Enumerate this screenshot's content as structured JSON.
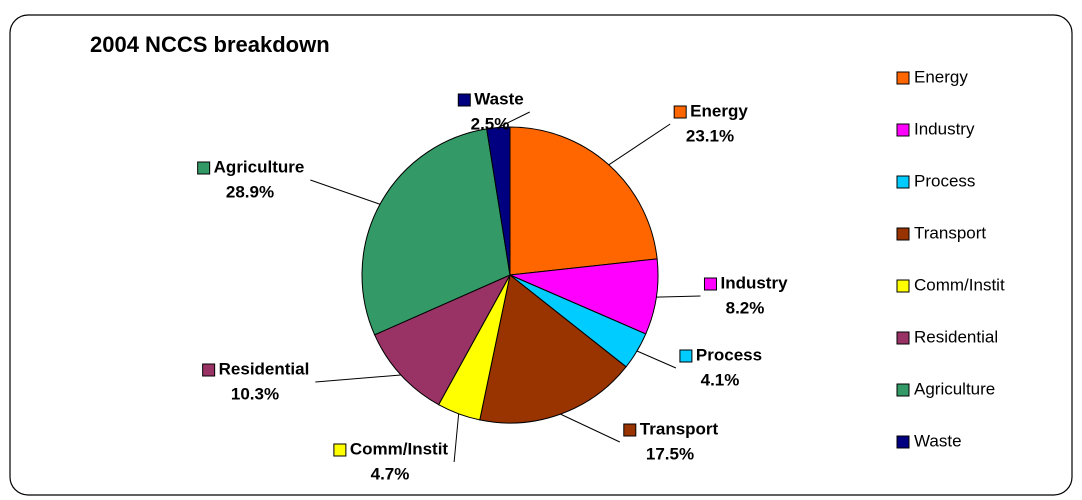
{
  "chart_data": {
    "type": "pie",
    "title": "2004 NCCS breakdown",
    "categories": [
      "Energy",
      "Industry",
      "Process",
      "Transport",
      "Comm/Instit",
      "Residential",
      "Agriculture",
      "Waste"
    ],
    "values": [
      23.1,
      8.2,
      4.1,
      17.5,
      4.7,
      10.3,
      28.9,
      2.5
    ],
    "value_labels": [
      "23.1%",
      "8.2%",
      "4.1%",
      "17.5%",
      "4.7%",
      "10.3%",
      "28.9%",
      "2.5%"
    ],
    "colors": [
      "#FF6600",
      "#FF00FF",
      "#00CCFF",
      "#993300",
      "#FFFF00",
      "#993366",
      "#339966",
      "#000080"
    ],
    "legend": "right"
  }
}
